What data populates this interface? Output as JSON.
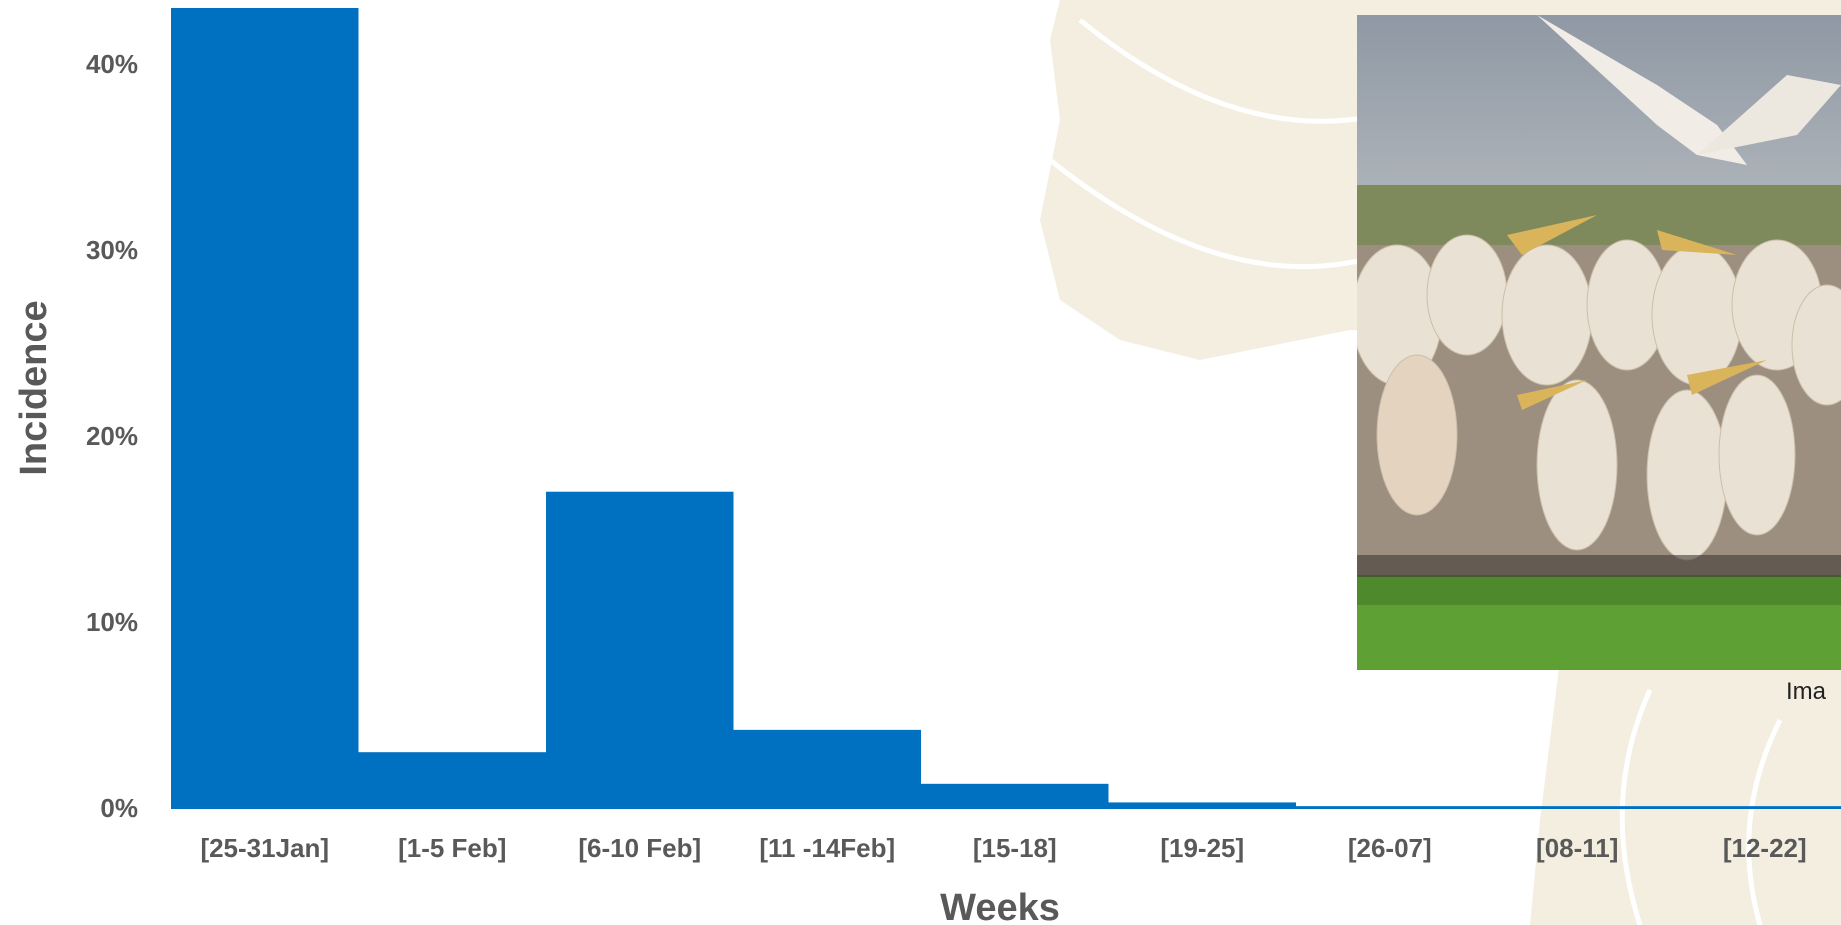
{
  "colors": {
    "bar": "#0070C0",
    "text": "#595959",
    "map_bg": "#F3EEDF"
  },
  "photo": {
    "subject": "flock of white pelicans",
    "caption": "Ima"
  },
  "chart_data": {
    "type": "bar",
    "xlabel": "Weeks",
    "ylabel": "Incidence",
    "ylim": [
      0,
      43
    ],
    "yticks": [
      0,
      10,
      20,
      30,
      40
    ],
    "ytick_labels": [
      "0%",
      "10%",
      "20%",
      "30%",
      "40%"
    ],
    "categories": [
      "[25-31Jan]",
      "[1-5 Feb]",
      "[6-10 Feb]",
      "[11 -14Feb]",
      "[15-18]",
      "[19-25]",
      "[26-07]",
      "[08-11]",
      "[12-22]"
    ],
    "values": [
      43.0,
      3.0,
      17.0,
      4.2,
      1.3,
      0.3,
      0.1,
      0.1,
      0.1
    ],
    "grid": false,
    "legend": "none"
  }
}
